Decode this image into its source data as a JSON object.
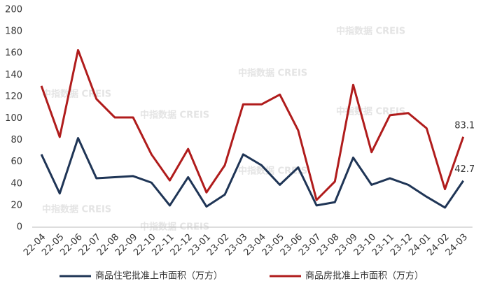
{
  "chart_data": {
    "type": "line",
    "watermark": "中指数据 CREIS",
    "categories": [
      "22-04",
      "22-05",
      "22-06",
      "22-07",
      "22-08",
      "22-09",
      "22-10",
      "22-11",
      "22-12",
      "23-01",
      "23-02",
      "23-03",
      "23-04",
      "23-05",
      "23-06",
      "23-07",
      "23-08",
      "23-09",
      "23-10",
      "23-11",
      "23-12",
      "24-01",
      "24-02",
      "24-03"
    ],
    "series": [
      {
        "name": "商品住宅批准上市面积（万方）",
        "color": "#1f3556",
        "values": [
          67,
          31,
          82,
          45,
          46,
          47,
          41,
          20,
          46,
          19,
          30,
          67,
          57,
          39,
          55,
          20,
          23,
          64,
          39,
          45,
          39,
          28,
          18,
          42.7
        ]
      },
      {
        "name": "商品房批准上市面积（万方）",
        "color": "#b01c1c",
        "values": [
          130,
          83,
          163,
          118,
          101,
          101,
          67,
          43,
          72,
          32,
          57,
          113,
          113,
          122,
          89,
          25,
          42,
          131,
          69,
          103,
          105,
          91,
          35,
          83.1
        ]
      }
    ],
    "ylim": [
      0,
      200
    ],
    "yticks": [
      0,
      20,
      40,
      60,
      80,
      100,
      120,
      140,
      160,
      180,
      200
    ],
    "grid": false
  }
}
